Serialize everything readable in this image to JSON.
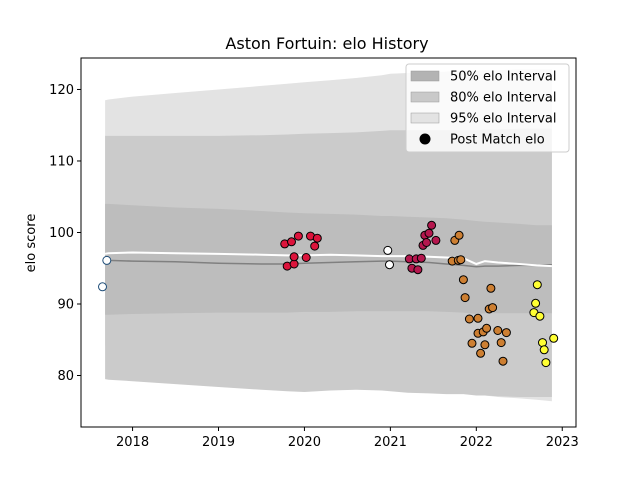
{
  "chart_data": {
    "type": "scatter",
    "title": "Aston Fortuin: elo History",
    "xlabel": "",
    "ylabel": "elo score",
    "xlim": [
      2017.4,
      2023.16
    ],
    "ylim": [
      72.8,
      124.4
    ],
    "x_ticks": [
      2018,
      2019,
      2020,
      2021,
      2022,
      2023
    ],
    "x_tick_labels": [
      "2018",
      "2019",
      "2020",
      "2021",
      "2022",
      "2023"
    ],
    "y_ticks": [
      80,
      90,
      100,
      110,
      120
    ],
    "y_tick_labels": [
      "80",
      "90",
      "100",
      "110",
      "120"
    ],
    "grid": false,
    "legend_position": "top-right",
    "legend": [
      {
        "label": "50% elo Interval",
        "kind": "band",
        "color": "#b3b3b3"
      },
      {
        "label": "80% elo Interval",
        "kind": "band",
        "color": "#c9c9c9"
      },
      {
        "label": "95% elo Interval",
        "kind": "band",
        "color": "#e3e3e3"
      },
      {
        "label": "Post Match elo",
        "kind": "marker",
        "color": "#000000"
      }
    ],
    "bands": {
      "x": [
        2017.68,
        2017.72,
        2018.0,
        2018.5,
        2019.0,
        2019.5,
        2019.8,
        2020.0,
        2020.3,
        2020.6,
        2020.9,
        2021.0,
        2021.2,
        2021.45,
        2021.65,
        2021.85,
        2022.0,
        2022.1,
        2022.25,
        2022.5,
        2022.7,
        2022.88
      ],
      "p95_upper": [
        118.5,
        118.6,
        119.0,
        119.5,
        120.0,
        120.5,
        120.8,
        121.0,
        121.3,
        121.6,
        122.0,
        122.2,
        122.3,
        122.4,
        122.5,
        122.6,
        122.6,
        122.7,
        122.7,
        122.8,
        122.8,
        122.8
      ],
      "p80_upper": [
        113.5,
        113.5,
        113.5,
        113.5,
        113.5,
        113.6,
        113.7,
        113.8,
        113.9,
        114.0,
        114.2,
        114.3,
        114.3,
        114.3,
        114.3,
        114.3,
        114.3,
        114.4,
        114.4,
        114.5,
        114.5,
        114.5
      ],
      "p50_upper": [
        104.0,
        104.0,
        103.8,
        103.5,
        103.3,
        103.0,
        102.8,
        102.7,
        102.6,
        102.5,
        102.3,
        102.3,
        102.2,
        102.1,
        102.0,
        101.8,
        101.6,
        101.5,
        101.4,
        101.2,
        101.0,
        101.0
      ],
      "median": [
        96.2,
        96.1,
        96.0,
        95.9,
        95.7,
        95.6,
        95.6,
        95.7,
        95.8,
        95.9,
        96.0,
        96.0,
        95.9,
        95.8,
        95.6,
        95.4,
        95.2,
        95.3,
        95.3,
        95.4,
        95.4,
        95.5
      ],
      "mean": [
        97.0,
        97.1,
        97.2,
        97.1,
        97.0,
        96.9,
        96.8,
        96.8,
        96.9,
        96.8,
        96.7,
        96.7,
        96.7,
        96.6,
        96.5,
        96.4,
        95.6,
        96.0,
        95.8,
        95.6,
        95.4,
        95.3
      ],
      "p50_lower": [
        88.5,
        88.5,
        88.6,
        88.7,
        88.8,
        88.8,
        88.8,
        88.9,
        88.9,
        89.0,
        89.0,
        89.0,
        89.0,
        89.0,
        88.9,
        88.8,
        88.6,
        88.7,
        88.7,
        88.7,
        88.7,
        88.7
      ],
      "p80_lower": [
        79.5,
        79.4,
        79.2,
        78.8,
        78.4,
        78.0,
        77.8,
        77.7,
        77.9,
        78.0,
        77.9,
        77.8,
        77.6,
        77.5,
        77.4,
        77.4,
        77.2,
        77.2,
        77.1,
        77.0,
        77.0,
        77.0
      ],
      "p95_lower": [
        84.2,
        84.0,
        83.6,
        83.0,
        82.4,
        81.8,
        81.4,
        81.0,
        80.5,
        80.0,
        79.6,
        79.3,
        78.8,
        78.4,
        78.0,
        77.7,
        77.4,
        77.2,
        77.0,
        76.8,
        76.6,
        76.4
      ]
    },
    "series": [
      {
        "point_color": "#ffffff",
        "edge_color": "#1f4e79",
        "points": [
          [
            2017.65,
            92.4
          ],
          [
            2017.7,
            96.1
          ]
        ]
      },
      {
        "point_color": "#dc143c",
        "edge_color": "#000000",
        "points": [
          [
            2019.77,
            98.4
          ],
          [
            2019.8,
            95.3
          ],
          [
            2019.85,
            98.7
          ],
          [
            2019.88,
            95.6
          ],
          [
            2019.88,
            96.6
          ],
          [
            2019.93,
            99.5
          ],
          [
            2020.02,
            96.5
          ],
          [
            2020.07,
            99.5
          ],
          [
            2020.12,
            98.1
          ],
          [
            2020.15,
            99.2
          ]
        ]
      },
      {
        "point_color": "#ffffff",
        "edge_color": "#000000",
        "points": [
          [
            2020.97,
            97.5
          ],
          [
            2020.99,
            95.5
          ]
        ]
      },
      {
        "point_color": "#b5174e",
        "edge_color": "#000000",
        "points": [
          [
            2021.22,
            96.3
          ],
          [
            2021.25,
            95.0
          ],
          [
            2021.3,
            96.3
          ],
          [
            2021.32,
            94.8
          ],
          [
            2021.36,
            96.4
          ],
          [
            2021.38,
            98.2
          ],
          [
            2021.4,
            99.6
          ],
          [
            2021.42,
            98.6
          ],
          [
            2021.45,
            99.9
          ],
          [
            2021.48,
            101.0
          ],
          [
            2021.53,
            98.9
          ]
        ]
      },
      {
        "point_color": "#cd7f32",
        "edge_color": "#000000",
        "points": [
          [
            2021.72,
            96.0
          ],
          [
            2021.75,
            98.9
          ],
          [
            2021.79,
            96.1
          ],
          [
            2021.8,
            99.6
          ],
          [
            2021.82,
            96.2
          ],
          [
            2021.85,
            93.4
          ],
          [
            2021.87,
            90.9
          ],
          [
            2021.92,
            87.9
          ],
          [
            2021.95,
            84.5
          ],
          [
            2022.02,
            85.9
          ],
          [
            2022.02,
            88.0
          ],
          [
            2022.05,
            83.1
          ],
          [
            2022.08,
            86.1
          ],
          [
            2022.1,
            84.3
          ],
          [
            2022.12,
            86.6
          ],
          [
            2022.15,
            89.3
          ],
          [
            2022.17,
            92.2
          ],
          [
            2022.19,
            89.5
          ],
          [
            2022.25,
            86.3
          ],
          [
            2022.29,
            84.6
          ],
          [
            2022.31,
            82.0
          ],
          [
            2022.35,
            86.0
          ]
        ]
      },
      {
        "point_color": "#ffff33",
        "edge_color": "#000000",
        "points": [
          [
            2022.67,
            88.8
          ],
          [
            2022.69,
            90.1
          ],
          [
            2022.71,
            92.7
          ],
          [
            2022.74,
            88.3
          ],
          [
            2022.77,
            84.6
          ],
          [
            2022.79,
            83.6
          ],
          [
            2022.81,
            81.8
          ],
          [
            2022.9,
            85.2
          ]
        ]
      }
    ]
  }
}
